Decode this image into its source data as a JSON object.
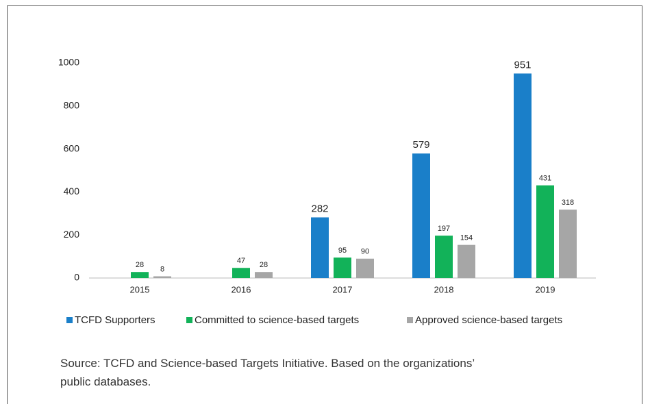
{
  "chart_data": {
    "type": "bar",
    "categories": [
      "2015",
      "2016",
      "2017",
      "2018",
      "2019"
    ],
    "series": [
      {
        "name": "TCFD Supporters",
        "color": "#1a7fc9",
        "values": [
          null,
          null,
          282,
          579,
          951
        ]
      },
      {
        "name": "Committed to science-based targets",
        "color": "#12b259",
        "values": [
          28,
          47,
          95,
          197,
          431
        ]
      },
      {
        "name": "Approved science-based targets",
        "color": "#a6a6a6",
        "values": [
          8,
          28,
          90,
          154,
          318
        ]
      }
    ],
    "ylim": [
      0,
      1000
    ],
    "yticks": [
      0,
      200,
      400,
      600,
      800,
      1000
    ],
    "grid": false,
    "source": "Source: TCFD and Science-based Targets Initiative. Based on the organizations’ public databases."
  }
}
